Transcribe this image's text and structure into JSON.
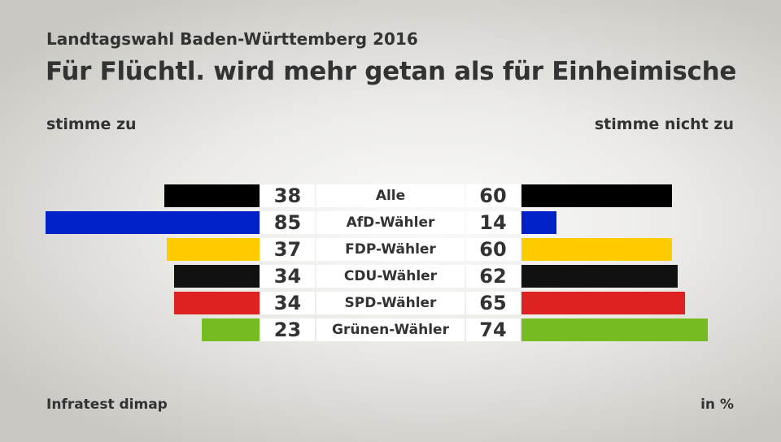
{
  "subtitle": "Landtagswahl Baden-Württemberg 2016",
  "title": "Für Flüchtl. wird mehr getan als für Einheimische",
  "source": "Infratest dimap",
  "unit": "in %",
  "chart_data": {
    "type": "bar",
    "orientation": "horizontal-diverging",
    "left_label": "stimme zu",
    "right_label": "stimme nicht zu",
    "categories": [
      "Alle",
      "AfD-Wähler",
      "FDP-Wähler",
      "CDU-Wähler",
      "SPD-Wähler",
      "Grünen-Wähler"
    ],
    "series": [
      {
        "name": "stimme zu",
        "values": [
          38,
          85,
          37,
          34,
          34,
          23
        ]
      },
      {
        "name": "stimme nicht zu",
        "values": [
          60,
          14,
          60,
          62,
          65,
          74
        ]
      }
    ],
    "colors": [
      "#000000",
      "#0021c8",
      "#ffcc00",
      "#111111",
      "#dd2222",
      "#77bb22"
    ],
    "xlim": [
      0,
      100
    ]
  }
}
